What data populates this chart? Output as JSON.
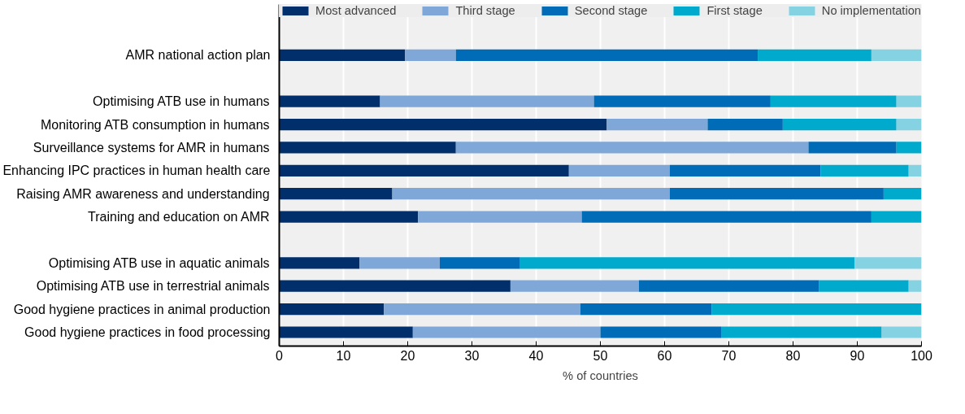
{
  "chart_data": {
    "type": "bar",
    "orientation": "horizontal",
    "stacked": true,
    "categories": [
      "AMR national action plan",
      null,
      "Optimising ATB use in humans",
      "Monitoring ATB consumption in humans",
      "Surveillance systems for AMR in humans",
      "Enhancing IPC practices in human health care",
      "Raising AMR awareness and understanding",
      "Training and education on AMR",
      null,
      "Optimising ATB use in aquatic animals",
      "Optimising ATB use in terrestrial animals",
      "Good hygiene practices in animal production",
      "Good hygiene practices in food processing"
    ],
    "series": [
      {
        "name": "Most advanced",
        "color": "#002f6c",
        "values": [
          19.6,
          null,
          15.7,
          51,
          27.5,
          45.1,
          17.6,
          21.6,
          null,
          12.5,
          36,
          16.3,
          20.8
        ]
      },
      {
        "name": "Third stage",
        "color": "#7fa8d9",
        "values": [
          7.9,
          null,
          33.3,
          15.7,
          54.9,
          15.7,
          43.2,
          25.5,
          null,
          12.5,
          20,
          30.6,
          29.2
        ]
      },
      {
        "name": "Second stage",
        "color": "#006bb6",
        "values": [
          47,
          null,
          27.5,
          11.7,
          13.7,
          23.5,
          33.3,
          45.1,
          null,
          12.5,
          28,
          20.4,
          18.8
        ]
      },
      {
        "name": "First stage",
        "color": "#00aacc",
        "values": [
          17.7,
          null,
          19.6,
          17.7,
          3.9,
          13.7,
          5.9,
          7.8,
          null,
          52.1,
          14,
          32.7,
          25
        ]
      },
      {
        "name": "No implementation",
        "color": "#85d2e3",
        "values": [
          7.8,
          null,
          3.9,
          3.9,
          0,
          2,
          0,
          0,
          null,
          10.4,
          2,
          0,
          6.2
        ]
      }
    ],
    "xlim": [
      0,
      100
    ],
    "xticks": [
      0,
      10,
      20,
      30,
      40,
      50,
      60,
      70,
      80,
      90,
      100
    ],
    "xlabel": "% of countries",
    "grid": "x",
    "legend": "top"
  }
}
